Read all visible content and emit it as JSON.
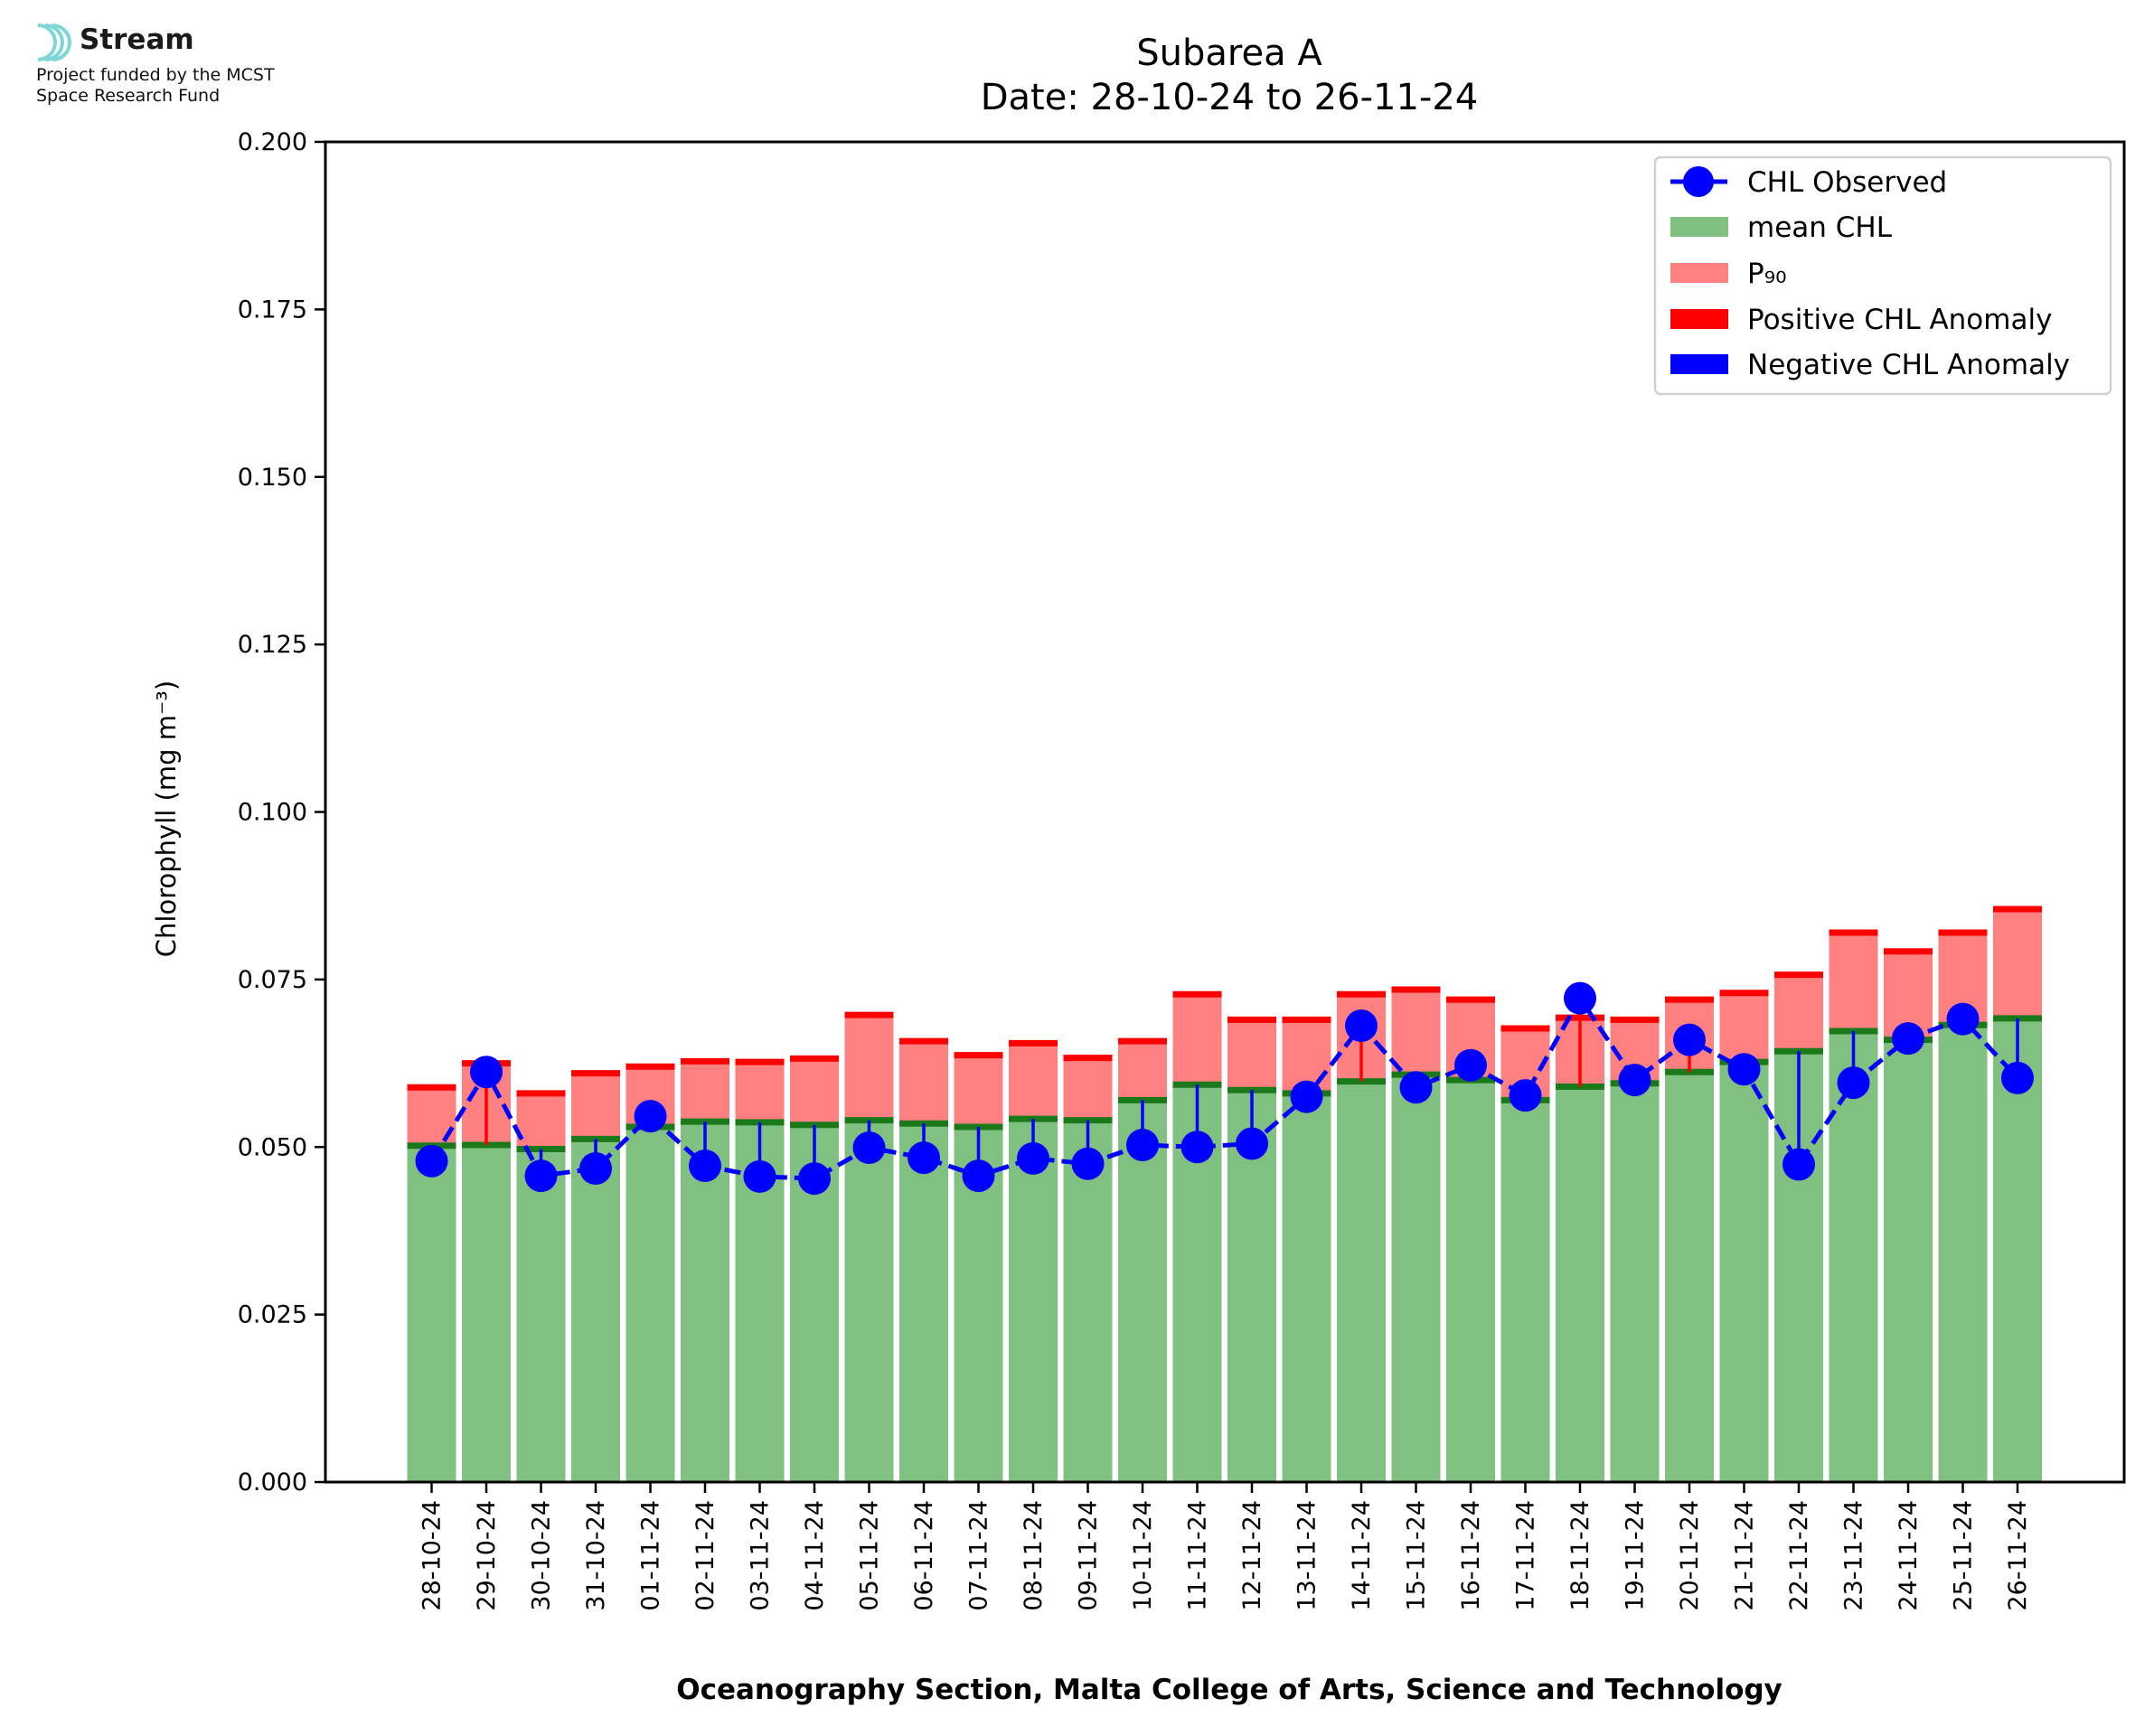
{
  "logo": {
    "name": "Stream",
    "line1": "Project funded by the MCST",
    "line2": "Space Research Fund",
    "accent": "#7fd6d6"
  },
  "chart_data": {
    "type": "bar",
    "title": "Subarea A",
    "subtitle": "Date: 28-10-24 to 26-11-24",
    "ylabel": "Chlorophyll (mg m⁻³)",
    "xlabel": "Oceanography Section, Malta College of Arts, Science and Technology",
    "ylim": [
      0,
      0.2
    ],
    "yticks": [
      "0.000",
      "0.025",
      "0.050",
      "0.075",
      "0.100",
      "0.125",
      "0.150",
      "0.175",
      "0.200"
    ],
    "categories": [
      "28-10-24",
      "29-10-24",
      "30-10-24",
      "31-10-24",
      "01-11-24",
      "02-11-24",
      "03-11-24",
      "04-11-24",
      "05-11-24",
      "06-11-24",
      "07-11-24",
      "08-11-24",
      "09-11-24",
      "10-11-24",
      "11-11-24",
      "12-11-24",
      "13-11-24",
      "14-11-24",
      "15-11-24",
      "16-11-24",
      "17-11-24",
      "18-11-24",
      "19-11-24",
      "20-11-24",
      "21-11-24",
      "22-11-24",
      "23-11-24",
      "24-11-24",
      "25-11-24",
      "26-11-24"
    ],
    "series": [
      {
        "name": "mean CHL",
        "color": "#80c080",
        "line_color": "#1a7a1a",
        "values": [
          0.0502,
          0.0503,
          0.0497,
          0.0512,
          0.053,
          0.0538,
          0.0537,
          0.0533,
          0.054,
          0.0535,
          0.053,
          0.0542,
          0.054,
          0.057,
          0.0593,
          0.0585,
          0.058,
          0.0598,
          0.0608,
          0.06,
          0.057,
          0.059,
          0.0595,
          0.0612,
          0.0627,
          0.0643,
          0.0673,
          0.066,
          0.0682,
          0.0692
        ]
      },
      {
        "name": "P₉₀",
        "color": "#ff8080",
        "line_color": "#ff0000",
        "values": [
          0.0589,
          0.0625,
          0.058,
          0.061,
          0.062,
          0.0628,
          0.0627,
          0.0632,
          0.0697,
          0.0658,
          0.0637,
          0.0655,
          0.0633,
          0.0658,
          0.0728,
          0.069,
          0.069,
          0.0728,
          0.0735,
          0.072,
          0.0677,
          0.0693,
          0.069,
          0.072,
          0.073,
          0.0757,
          0.082,
          0.0792,
          0.082,
          0.0855
        ]
      },
      {
        "name": "CHL Observed",
        "color": "#0000ff",
        "values": [
          0.0479,
          0.0612,
          0.0457,
          0.0468,
          0.0546,
          0.0472,
          0.0456,
          0.0453,
          0.0499,
          0.0484,
          0.0457,
          0.0483,
          0.0475,
          0.0503,
          0.05,
          0.0505,
          0.0575,
          0.0681,
          0.0589,
          0.0622,
          0.0577,
          0.0722,
          0.06,
          0.066,
          0.0616,
          0.0474,
          0.0596,
          0.0662,
          0.0691,
          0.0603
        ]
      }
    ],
    "legend": {
      "position": "top-right",
      "entries": [
        {
          "label": "CHL Observed",
          "kind": "line-marker",
          "color": "#0000ff"
        },
        {
          "label": "mean CHL",
          "kind": "patch",
          "color": "#80c080"
        },
        {
          "label": "P₉₀",
          "kind": "patch",
          "color": "#ff8080"
        },
        {
          "label": "Positive CHL Anomaly",
          "kind": "patch",
          "color": "#ff0000"
        },
        {
          "label": "Negative CHL Anomaly",
          "kind": "patch",
          "color": "#0000ff"
        }
      ]
    },
    "grid": false
  }
}
